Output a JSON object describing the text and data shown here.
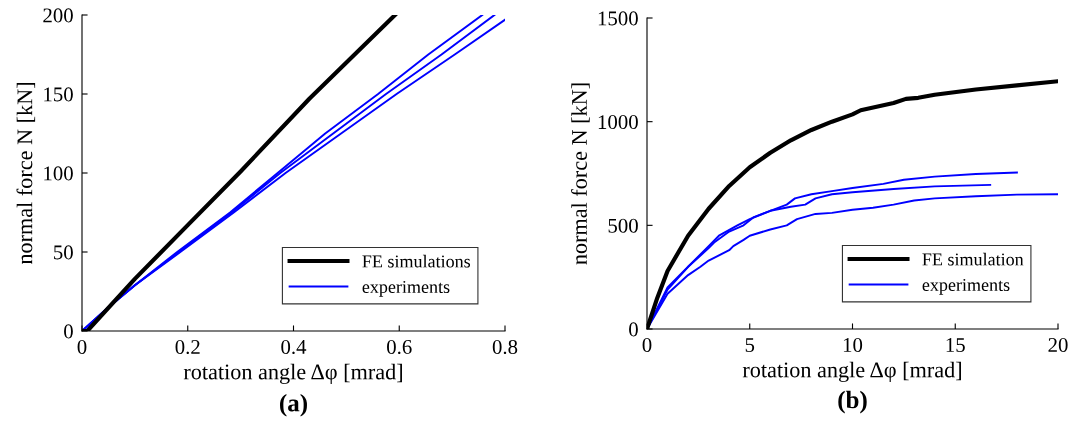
{
  "chart_data": [
    {
      "type": "line",
      "title": "(a)",
      "xlabel": "rotation angle Δφ [mrad]",
      "ylabel": "normal force N [kN]",
      "xlim": [
        0,
        0.8
      ],
      "ylim": [
        0,
        200
      ],
      "xticks": [
        0,
        0.2,
        0.4,
        0.6,
        0.8
      ],
      "yticks": [
        0,
        50,
        100,
        150,
        200
      ],
      "grid": false,
      "legend": "lower right",
      "series": [
        {
          "name": "FE simulations",
          "color": "#000000",
          "x": [
            0,
            0.01,
            0.1,
            0.2,
            0.3,
            0.43,
            0.592
          ],
          "values": [
            0,
            0,
            33,
            67,
            101,
            147,
            200
          ]
        },
        {
          "name": "experiments",
          "color": "#0000ff",
          "x": [
            0,
            0.05,
            0.1,
            0.18,
            0.28,
            0.37,
            0.46,
            0.56,
            0.655,
            0.757
          ],
          "values": [
            0,
            15,
            29,
            50,
            75,
            100,
            125,
            150,
            175,
            200
          ]
        },
        {
          "color": "#0000ff",
          "x": [
            0,
            0.05,
            0.1,
            0.183,
            0.283,
            0.375,
            0.475,
            0.575,
            0.68,
            0.78
          ],
          "values": [
            0,
            15,
            29,
            50,
            75,
            100,
            125,
            150,
            175,
            200
          ]
        },
        {
          "color": "#0000ff",
          "x": [
            0,
            0.05,
            0.1,
            0.186,
            0.287,
            0.385,
            0.49,
            0.595,
            0.705,
            0.8
          ],
          "values": [
            0,
            15,
            29,
            50,
            75,
            100,
            125,
            150,
            175,
            197
          ]
        }
      ]
    },
    {
      "type": "line",
      "title": "(b)",
      "xlabel": "rotation angle Δφ [mrad]",
      "ylabel": "normal force N [kN]",
      "xlim": [
        0,
        20
      ],
      "ylim": [
        0,
        1500
      ],
      "xticks": [
        0,
        5,
        10,
        15,
        20
      ],
      "yticks": [
        0,
        500,
        1000,
        1500
      ],
      "grid": false,
      "legend": "lower right",
      "series": [
        {
          "name": "FE simulation",
          "color": "#000000",
          "x": [
            0,
            0.5,
            1,
            2,
            3,
            4,
            5,
            6,
            7,
            8,
            9,
            10,
            10.4,
            12,
            12.6,
            13.2,
            14,
            16,
            18,
            20
          ],
          "values": [
            0,
            150,
            280,
            450,
            580,
            690,
            780,
            850,
            910,
            960,
            1000,
            1035,
            1055,
            1090,
            1110,
            1115,
            1130,
            1155,
            1175,
            1195
          ]
        },
        {
          "name": "experiments",
          "color": "#0000ff",
          "x": [
            0,
            1,
            2,
            3,
            3.5,
            4.4,
            5,
            6,
            6.8,
            7.2,
            8,
            9,
            10,
            11.5,
            12.5,
            14,
            16,
            18
          ],
          "values": [
            0,
            190,
            300,
            400,
            450,
            500,
            530,
            570,
            600,
            630,
            650,
            665,
            680,
            700,
            720,
            735,
            748,
            755
          ]
        },
        {
          "color": "#0000ff",
          "x": [
            0,
            1,
            2,
            3,
            3.3,
            4,
            4.7,
            5.2,
            6,
            7,
            7.7,
            8.2,
            9,
            10,
            12,
            14,
            16.7
          ],
          "values": [
            0,
            200,
            300,
            390,
            420,
            470,
            500,
            540,
            570,
            590,
            600,
            630,
            650,
            660,
            675,
            688,
            695
          ]
        },
        {
          "color": "#0000ff",
          "x": [
            0,
            1,
            2,
            2.6,
            3,
            4,
            4.2,
            4.7,
            5,
            6,
            6.8,
            7.3,
            8.2,
            9,
            10,
            11,
            12,
            13,
            14,
            16,
            18,
            20
          ],
          "values": [
            0,
            170,
            260,
            300,
            330,
            380,
            400,
            430,
            450,
            480,
            500,
            530,
            555,
            560,
            575,
            585,
            600,
            620,
            630,
            640,
            648,
            650
          ]
        }
      ]
    }
  ]
}
